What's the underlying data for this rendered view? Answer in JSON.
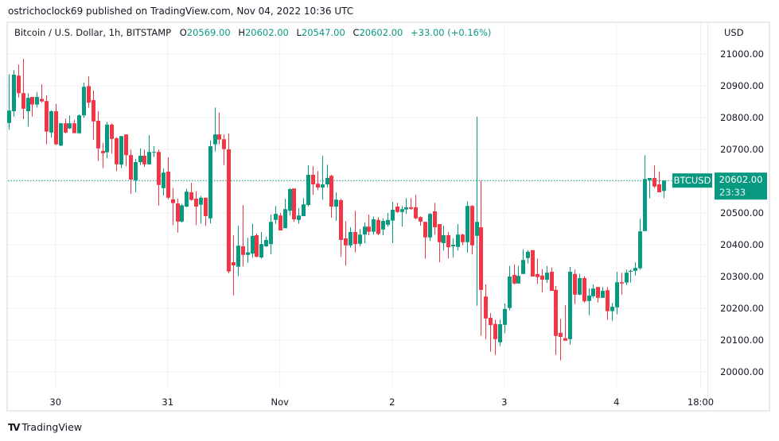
{
  "published": "ostrichoclock69 published on TradingView.com, Nov 04, 2022 10:36 UTC",
  "legend": {
    "symbol": "Bitcoin / U.S. Dollar, 1h, BITSTAMP",
    "o_label": "O",
    "o": "20569.00",
    "h_label": "H",
    "h": "20602.00",
    "l_label": "L",
    "l": "20547.00",
    "c_label": "C",
    "c": "20602.00",
    "change": "+33.00 (+0.16%)"
  },
  "currency": "USD",
  "ticker_label": "BTCUSD",
  "last_price": "20602.00",
  "countdown": "23:33",
  "footer": {
    "brand": "TradingView",
    "logo": "TV"
  },
  "colors": {
    "up": "#089981",
    "down": "#f23645",
    "grid": "#f0f1f4",
    "border": "#e9eaef"
  },
  "chart_data": {
    "type": "candlestick",
    "interval": "1h",
    "ylim": [
      19950,
      21050
    ],
    "grid": true,
    "last_price_line": 20602,
    "y_ticks": [
      "20000.00",
      "20100.00",
      "20200.00",
      "20300.00",
      "20400.00",
      "20500.00",
      "20600.00",
      "20700.00",
      "20800.00",
      "20900.00",
      "21000.00"
    ],
    "x_ticks": [
      {
        "label": "30",
        "time": "2022-10-30T00:00"
      },
      {
        "label": "31",
        "time": "2022-10-31T00:00"
      },
      {
        "label": "Nov",
        "time": "2022-11-01T00:00"
      },
      {
        "label": "2",
        "time": "2022-11-02T00:00"
      },
      {
        "label": "3",
        "time": "2022-11-03T00:00"
      },
      {
        "label": "4",
        "time": "2022-11-04T00:00"
      },
      {
        "label": "18:00",
        "time": "2022-11-04T18:00"
      }
    ],
    "candle_fields": [
      "time",
      "open",
      "high",
      "low",
      "close"
    ],
    "candles": [
      [
        "2022-10-29T14:00",
        20783,
        20937,
        20762,
        20822
      ],
      [
        "2022-10-29T15:00",
        20820,
        20949,
        20803,
        20935
      ],
      [
        "2022-10-29T16:00",
        20932,
        20967,
        20863,
        20877
      ],
      [
        "2022-10-29T17:00",
        20877,
        20985,
        20795,
        20828
      ],
      [
        "2022-10-29T18:00",
        20820,
        20877,
        20772,
        20862
      ],
      [
        "2022-10-29T19:00",
        20865,
        20865,
        20803,
        20841
      ],
      [
        "2022-10-29T20:00",
        20841,
        20880,
        20832,
        20865
      ],
      [
        "2022-10-29T21:00",
        20859,
        20905,
        20847,
        20851
      ],
      [
        "2022-10-29T22:00",
        20852,
        20870,
        20716,
        20756
      ],
      [
        "2022-10-29T23:00",
        20753,
        20823,
        20737,
        20820
      ],
      [
        "2022-10-30T00:00",
        20820,
        20843,
        20713,
        20716
      ],
      [
        "2022-10-30T01:00",
        20712,
        20783,
        20710,
        20782
      ],
      [
        "2022-10-30T02:00",
        20782,
        20797,
        20751,
        20753
      ],
      [
        "2022-10-30T03:00",
        20766,
        20807,
        20764,
        20782
      ],
      [
        "2022-10-30T04:00",
        20782,
        20793,
        20751,
        20751
      ],
      [
        "2022-10-30T05:00",
        20751,
        20810,
        20749,
        20807
      ],
      [
        "2022-10-30T06:00",
        20807,
        20910,
        20799,
        20897
      ],
      [
        "2022-10-30T07:00",
        20899,
        20930,
        20831,
        20847
      ],
      [
        "2022-10-30T08:00",
        20855,
        20885,
        20730,
        20788
      ],
      [
        "2022-10-30T09:00",
        20790,
        20820,
        20663,
        20703
      ],
      [
        "2022-10-30T10:00",
        20695,
        20720,
        20641,
        20688
      ],
      [
        "2022-10-30T11:00",
        20691,
        20787,
        20672,
        20778
      ],
      [
        "2022-10-30T12:00",
        20778,
        20782,
        20687,
        20733
      ],
      [
        "2022-10-30T13:00",
        20735,
        20739,
        20632,
        20653
      ],
      [
        "2022-10-30T14:00",
        20652,
        20742,
        20641,
        20742
      ],
      [
        "2022-10-30T15:00",
        20747,
        20747,
        20647,
        20682
      ],
      [
        "2022-10-30T16:00",
        20682,
        20699,
        20560,
        20605
      ],
      [
        "2022-10-30T17:00",
        20603,
        20670,
        20566,
        20660
      ],
      [
        "2022-10-30T18:00",
        20660,
        20703,
        20651,
        20680
      ],
      [
        "2022-10-30T19:00",
        20680,
        20699,
        20645,
        20653
      ],
      [
        "2022-10-30T20:00",
        20653,
        20745,
        20653,
        20692
      ],
      [
        "2022-10-30T21:00",
        20691,
        20710,
        20676,
        20692
      ],
      [
        "2022-10-30T22:00",
        20692,
        20699,
        20523,
        20588
      ],
      [
        "2022-10-30T23:00",
        20578,
        20640,
        20555,
        20627
      ],
      [
        "2022-10-31T00:00",
        20630,
        20675,
        20543,
        20548
      ],
      [
        "2022-10-31T01:00",
        20543,
        20578,
        20462,
        20531
      ],
      [
        "2022-10-31T02:00",
        20530,
        20545,
        20438,
        20473
      ],
      [
        "2022-10-31T03:00",
        20473,
        20528,
        20470,
        20524
      ],
      [
        "2022-10-31T04:00",
        20520,
        20576,
        20518,
        20567
      ],
      [
        "2022-10-31T05:00",
        20565,
        20595,
        20538,
        20541
      ],
      [
        "2022-10-31T06:00",
        20545,
        20568,
        20462,
        20520
      ],
      [
        "2022-10-31T07:00",
        20526,
        20553,
        20467,
        20548
      ],
      [
        "2022-10-31T08:00",
        20548,
        20548,
        20459,
        20490
      ],
      [
        "2022-10-31T09:00",
        20483,
        20728,
        20467,
        20710
      ],
      [
        "2022-10-31T10:00",
        20716,
        20832,
        20693,
        20747
      ],
      [
        "2022-10-31T11:00",
        20747,
        20816,
        20716,
        20731
      ],
      [
        "2022-10-31T12:00",
        20732,
        20747,
        20651,
        20701
      ],
      [
        "2022-10-31T13:00",
        20700,
        20750,
        20310,
        20316
      ],
      [
        "2022-10-31T14:00",
        20345,
        20430,
        20241,
        20335
      ],
      [
        "2022-10-31T15:00",
        20331,
        20460,
        20301,
        20397
      ],
      [
        "2022-10-31T16:00",
        20395,
        20525,
        20332,
        20368
      ],
      [
        "2022-10-31T17:00",
        20368,
        20422,
        20343,
        20376
      ],
      [
        "2022-10-31T18:00",
        20372,
        20466,
        20359,
        20428
      ],
      [
        "2022-10-31T19:00",
        20430,
        20435,
        20360,
        20362
      ],
      [
        "2022-10-31T20:00",
        20360,
        20440,
        20356,
        20402
      ],
      [
        "2022-10-31T21:00",
        20395,
        20426,
        20393,
        20415
      ],
      [
        "2022-10-31T22:00",
        20402,
        20495,
        20370,
        20472
      ],
      [
        "2022-10-31T23:00",
        20478,
        20522,
        20466,
        20497
      ],
      [
        "2022-11-01T00:00",
        20492,
        20500,
        20445,
        20445
      ],
      [
        "2022-11-01T01:00",
        20452,
        20545,
        20452,
        20512
      ],
      [
        "2022-11-01T02:00",
        20507,
        20578,
        20492,
        20575
      ],
      [
        "2022-11-01T03:00",
        20577,
        20577,
        20472,
        20480
      ],
      [
        "2022-11-01T04:00",
        20478,
        20515,
        20466,
        20492
      ],
      [
        "2022-11-01T05:00",
        20490,
        20547,
        20490,
        20527
      ],
      [
        "2022-11-01T06:00",
        20525,
        20650,
        20520,
        20620
      ],
      [
        "2022-11-01T07:00",
        20620,
        20647,
        20557,
        20590
      ],
      [
        "2022-11-01T08:00",
        20592,
        20632,
        20572,
        20580
      ],
      [
        "2022-11-01T09:00",
        20580,
        20680,
        20542,
        20590
      ],
      [
        "2022-11-01T10:00",
        20590,
        20652,
        20580,
        20610
      ],
      [
        "2022-11-01T11:00",
        20617,
        20620,
        20485,
        20520
      ],
      [
        "2022-11-01T12:00",
        20520,
        20565,
        20475,
        20542
      ],
      [
        "2022-11-01T13:00",
        20540,
        20545,
        20362,
        20415
      ],
      [
        "2022-11-01T14:00",
        20420,
        20474,
        20334,
        20398
      ],
      [
        "2022-11-01T15:00",
        20398,
        20455,
        20391,
        20440
      ],
      [
        "2022-11-01T16:00",
        20440,
        20507,
        20376,
        20402
      ],
      [
        "2022-11-01T17:00",
        20403,
        20449,
        20395,
        20432
      ],
      [
        "2022-11-01T18:00",
        20432,
        20470,
        20405,
        20457
      ],
      [
        "2022-11-01T19:00",
        20457,
        20495,
        20430,
        20441
      ],
      [
        "2022-11-01T20:00",
        20441,
        20488,
        20432,
        20480
      ],
      [
        "2022-11-01T21:00",
        20478,
        20487,
        20430,
        20434
      ],
      [
        "2022-11-01T22:00",
        20448,
        20483,
        20430,
        20475
      ],
      [
        "2022-11-01T23:00",
        20463,
        20500,
        20457,
        20478
      ],
      [
        "2022-11-02T00:00",
        20476,
        20535,
        20405,
        20510
      ],
      [
        "2022-11-02T01:00",
        20520,
        20532,
        20500,
        20503
      ],
      [
        "2022-11-02T02:00",
        20503,
        20522,
        20457,
        20512
      ],
      [
        "2022-11-02T03:00",
        20511,
        20547,
        20497,
        20518
      ],
      [
        "2022-11-02T04:00",
        20518,
        20547,
        20510,
        20513
      ],
      [
        "2022-11-02T05:00",
        20518,
        20557,
        20480,
        20483
      ],
      [
        "2022-11-02T06:00",
        20487,
        20489,
        20460,
        20473
      ],
      [
        "2022-11-02T07:00",
        20472,
        20472,
        20356,
        20423
      ],
      [
        "2022-11-02T08:00",
        20423,
        20500,
        20412,
        20497
      ],
      [
        "2022-11-02T09:00",
        20505,
        20532,
        20432,
        20455
      ],
      [
        "2022-11-02T10:00",
        20465,
        20465,
        20345,
        20408
      ],
      [
        "2022-11-02T11:00",
        20405,
        20460,
        20382,
        20430
      ],
      [
        "2022-11-02T12:00",
        20430,
        20440,
        20357,
        20392
      ],
      [
        "2022-11-02T13:00",
        20395,
        20420,
        20360,
        20400
      ],
      [
        "2022-11-02T14:00",
        20393,
        20465,
        20382,
        20432
      ],
      [
        "2022-11-02T15:00",
        20432,
        20435,
        20398,
        20408
      ],
      [
        "2022-11-02T16:00",
        20408,
        20537,
        20375,
        20522
      ],
      [
        "2022-11-02T17:00",
        20522,
        20525,
        20370,
        20398
      ],
      [
        "2022-11-02T18:00",
        20428,
        20803,
        20208,
        20472
      ],
      [
        "2022-11-02T19:00",
        20455,
        20602,
        20113,
        20258
      ],
      [
        "2022-11-02T20:00",
        20237,
        20275,
        20103,
        20168
      ],
      [
        "2022-11-02T21:00",
        20170,
        20185,
        20063,
        20147
      ],
      [
        "2022-11-02T22:00",
        20151,
        20164,
        20053,
        20103
      ],
      [
        "2022-11-02T23:00",
        20093,
        20164,
        20081,
        20150
      ],
      [
        "2022-11-03T00:00",
        20148,
        20215,
        20122,
        20198
      ],
      [
        "2022-11-03T01:00",
        20201,
        20333,
        20193,
        20300
      ],
      [
        "2022-11-03T02:00",
        20305,
        20338,
        20275,
        20278
      ],
      [
        "2022-11-03T03:00",
        20278,
        20333,
        20278,
        20302
      ],
      [
        "2022-11-03T04:00",
        20308,
        20385,
        20308,
        20352
      ],
      [
        "2022-11-03T05:00",
        20358,
        20383,
        20341,
        20378
      ],
      [
        "2022-11-03T06:00",
        20383,
        20383,
        20300,
        20300
      ],
      [
        "2022-11-03T07:00",
        20308,
        20357,
        20277,
        20298
      ],
      [
        "2022-11-03T08:00",
        20303,
        20323,
        20250,
        20290
      ],
      [
        "2022-11-03T09:00",
        20290,
        20333,
        20280,
        20312
      ],
      [
        "2022-11-03T10:00",
        20315,
        20328,
        20255,
        20255
      ],
      [
        "2022-11-03T11:00",
        20258,
        20270,
        20053,
        20113
      ],
      [
        "2022-11-03T12:00",
        20123,
        20167,
        20036,
        20110
      ],
      [
        "2022-11-03T13:00",
        20106,
        20210,
        20098,
        20098
      ],
      [
        "2022-11-03T14:00",
        20103,
        20330,
        20086,
        20315
      ],
      [
        "2022-11-03T15:00",
        20308,
        20322,
        20213,
        20243
      ],
      [
        "2022-11-03T16:00",
        20243,
        20308,
        20241,
        20295
      ],
      [
        "2022-11-03T17:00",
        20295,
        20301,
        20218,
        20222
      ],
      [
        "2022-11-03T18:00",
        20223,
        20263,
        20178,
        20240
      ],
      [
        "2022-11-03T19:00",
        20238,
        20275,
        20233,
        20262
      ],
      [
        "2022-11-03T20:00",
        20267,
        20267,
        20218,
        20233
      ],
      [
        "2022-11-03T21:00",
        20233,
        20267,
        20233,
        20255
      ],
      [
        "2022-11-03T22:00",
        20257,
        20267,
        20163,
        20191
      ],
      [
        "2022-11-03T23:00",
        20191,
        20217,
        20161,
        20205
      ],
      [
        "2022-11-04T00:00",
        20203,
        20315,
        20181,
        20282
      ],
      [
        "2022-11-04T01:00",
        20282,
        20312,
        20243,
        20278
      ],
      [
        "2022-11-04T02:00",
        20281,
        20322,
        20273,
        20312
      ],
      [
        "2022-11-04T03:00",
        20315,
        20322,
        20281,
        20318
      ],
      [
        "2022-11-04T04:00",
        20318,
        20345,
        20303,
        20327
      ],
      [
        "2022-11-04T05:00",
        20326,
        20482,
        20321,
        20442
      ],
      [
        "2022-11-04T06:00",
        20443,
        20682,
        20443,
        20607
      ],
      [
        "2022-11-04T07:00",
        20603,
        20610,
        20546,
        20610
      ],
      [
        "2022-11-04T08:00",
        20610,
        20650,
        20578,
        20583
      ],
      [
        "2022-11-04T09:00",
        20590,
        20630,
        20565,
        20565
      ],
      [
        "2022-11-04T10:00",
        20569,
        20602,
        20547,
        20602
      ]
    ]
  }
}
